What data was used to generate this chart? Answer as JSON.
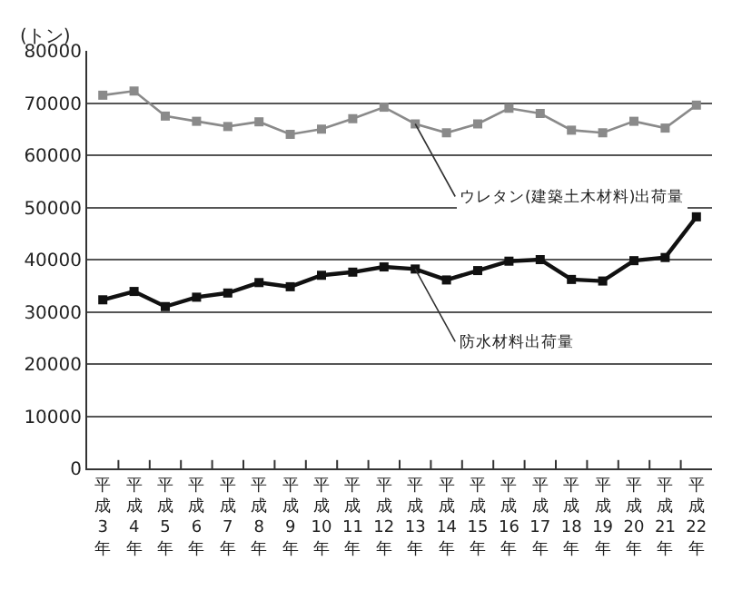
{
  "chart_data": {
    "type": "line",
    "ylabel": "(トン)",
    "categories": [
      "平成3年",
      "平成4年",
      "平成5年",
      "平成6年",
      "平成7年",
      "平成8年",
      "平成9年",
      "平成10年",
      "平成11年",
      "平成12年",
      "平成13年",
      "平成14年",
      "平成15年",
      "平成16年",
      "平成17年",
      "平成18年",
      "平成19年",
      "平成20年",
      "平成21年",
      "平成22年"
    ],
    "series": [
      {
        "name": "ウレタン(建築土木材料)出荷量",
        "color": "#8a8a8a",
        "values": [
          71500,
          72300,
          67500,
          66500,
          65500,
          66400,
          64000,
          65000,
          67000,
          69200,
          66000,
          64300,
          66000,
          69000,
          68000,
          64800,
          64300,
          66500,
          65200,
          69600
        ]
      },
      {
        "name": "防水材料出荷量",
        "color": "#111111",
        "values": [
          32300,
          33900,
          31000,
          32800,
          33600,
          35600,
          34800,
          37000,
          37600,
          38600,
          38200,
          36100,
          37900,
          39700,
          40000,
          36200,
          35900,
          39800,
          40400,
          48200
        ]
      }
    ],
    "ylim": [
      0,
      80000
    ],
    "yticks": [
      0,
      10000,
      20000,
      30000,
      40000,
      50000,
      60000,
      70000,
      80000
    ],
    "grid": "y",
    "legend": false,
    "marker": "square",
    "line_style": "solid"
  }
}
